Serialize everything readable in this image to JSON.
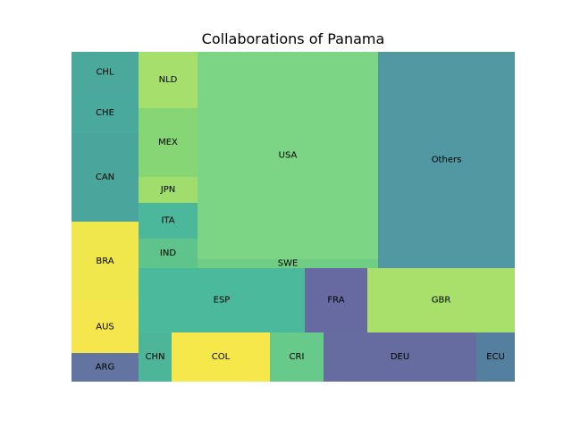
{
  "chart_data": {
    "type": "treemap",
    "title": "Collaborations of Panama",
    "items": [
      {
        "label": "CHL",
        "color": "#4aa99b"
      },
      {
        "label": "CHE",
        "color": "#49a99c"
      },
      {
        "label": "CAN",
        "color": "#4aa69c"
      },
      {
        "label": "BRA",
        "color": "#efe74b"
      },
      {
        "label": "AUS",
        "color": "#f4e64c"
      },
      {
        "label": "ARG",
        "color": "#62749f"
      },
      {
        "label": "NLD",
        "color": "#a6df6c"
      },
      {
        "label": "MEX",
        "color": "#86d676"
      },
      {
        "label": "JPN",
        "color": "#a1dd6d"
      },
      {
        "label": "ITA",
        "color": "#4bb89c"
      },
      {
        "label": "IND",
        "color": "#5fc38c"
      },
      {
        "label": "USA",
        "color": "#7bd585"
      },
      {
        "label": "SWE",
        "color": "#6fcd84"
      },
      {
        "label": "Others",
        "color": "#5198a3"
      },
      {
        "label": "ESP",
        "color": "#4bb99c"
      },
      {
        "label": "FRA",
        "color": "#676aa0"
      },
      {
        "label": "GBR",
        "color": "#a8e06b"
      },
      {
        "label": "CHN",
        "color": "#4db598"
      },
      {
        "label": "COL",
        "color": "#f6e74b"
      },
      {
        "label": "CRI",
        "color": "#67c98a"
      },
      {
        "label": "DEU",
        "color": "#666c9f"
      },
      {
        "label": "ECU",
        "color": "#547f9f"
      }
    ]
  }
}
